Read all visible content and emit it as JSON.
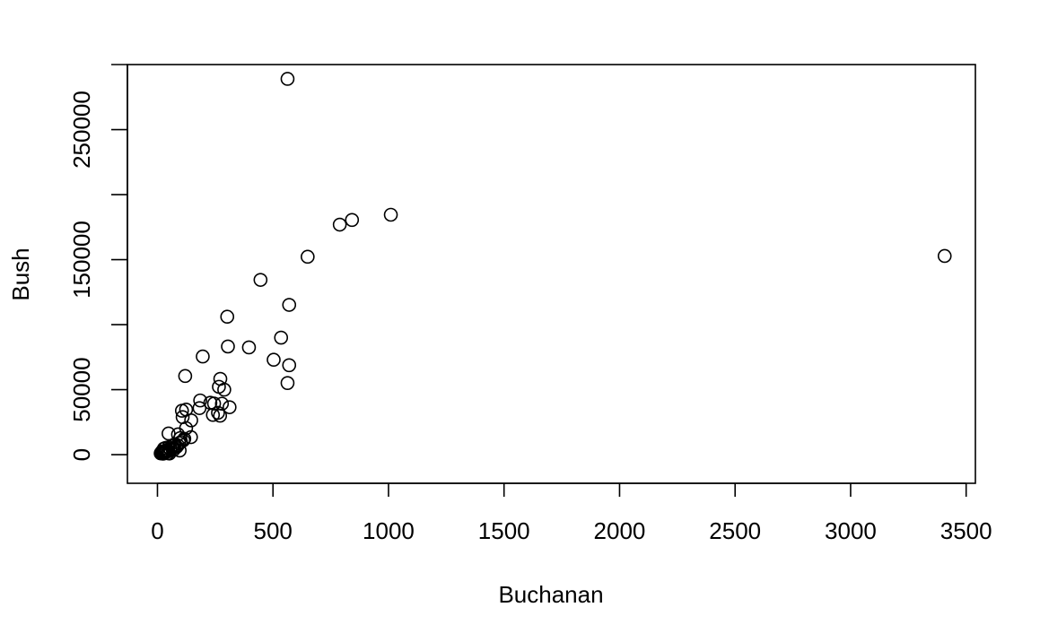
{
  "chart_data": {
    "type": "scatter",
    "title": "",
    "xlabel": "Buchanan",
    "ylabel": "Bush",
    "xlim": [
      -130,
      3540
    ],
    "ylim": [
      -22000,
      300000
    ],
    "x_ticks": [
      0,
      500,
      1000,
      1500,
      2000,
      2500,
      3000,
      3500
    ],
    "x_tick_labels": [
      "0",
      "500",
      "1000",
      "1500",
      "2000",
      "2500",
      "3000",
      "3500"
    ],
    "y_ticks": [
      0,
      50000,
      100000,
      150000,
      200000,
      250000,
      300000
    ],
    "y_tick_labels": [
      "0",
      "50000",
      "",
      "150000",
      "",
      "250000",
      ""
    ],
    "grid": false,
    "marker": "open-circle",
    "point_color": "#000000",
    "points": [
      [
        563,
        289000
      ],
      [
        3407,
        152800
      ],
      [
        1010,
        184500
      ],
      [
        842,
        180500
      ],
      [
        789,
        176900
      ],
      [
        650,
        152200
      ],
      [
        446,
        134400
      ],
      [
        570,
        115200
      ],
      [
        302,
        106100
      ],
      [
        535,
        90000
      ],
      [
        305,
        83200
      ],
      [
        396,
        82500
      ],
      [
        196,
        75500
      ],
      [
        503,
        73000
      ],
      [
        570,
        68800
      ],
      [
        120,
        60500
      ],
      [
        272,
        58300
      ],
      [
        563,
        55100
      ],
      [
        266,
        52200
      ],
      [
        289,
        50000
      ],
      [
        185,
        41700
      ],
      [
        229,
        39900
      ],
      [
        245,
        39300
      ],
      [
        279,
        39200
      ],
      [
        312,
        36500
      ],
      [
        182,
        35800
      ],
      [
        124,
        34700
      ],
      [
        106,
        33800
      ],
      [
        262,
        32200
      ],
      [
        240,
        30600
      ],
      [
        271,
        30000
      ],
      [
        109,
        28900
      ],
      [
        146,
        26400
      ],
      [
        124,
        20400
      ],
      [
        48,
        16300
      ],
      [
        89,
        15600
      ],
      [
        145,
        13500
      ],
      [
        99,
        12800
      ],
      [
        116,
        12200
      ],
      [
        112,
        11000
      ],
      [
        102,
        9800
      ],
      [
        94,
        8900
      ],
      [
        75,
        8000
      ],
      [
        88,
        7200
      ],
      [
        64,
        6500
      ],
      [
        48,
        5700
      ],
      [
        35,
        5200
      ],
      [
        28,
        4700
      ],
      [
        56,
        4200
      ],
      [
        71,
        3900
      ],
      [
        40,
        3500
      ],
      [
        96,
        3200
      ],
      [
        47,
        2700
      ],
      [
        19,
        2300
      ],
      [
        37,
        2100
      ],
      [
        22,
        1800
      ],
      [
        33,
        1500
      ],
      [
        28,
        1300
      ],
      [
        45,
        1100
      ],
      [
        14,
        1000
      ],
      [
        24,
        800
      ],
      [
        52,
        900
      ],
      [
        30,
        2600
      ],
      [
        66,
        4800
      ],
      [
        83,
        6000
      ],
      [
        17,
        1600
      ],
      [
        41,
        3000
      ]
    ]
  }
}
